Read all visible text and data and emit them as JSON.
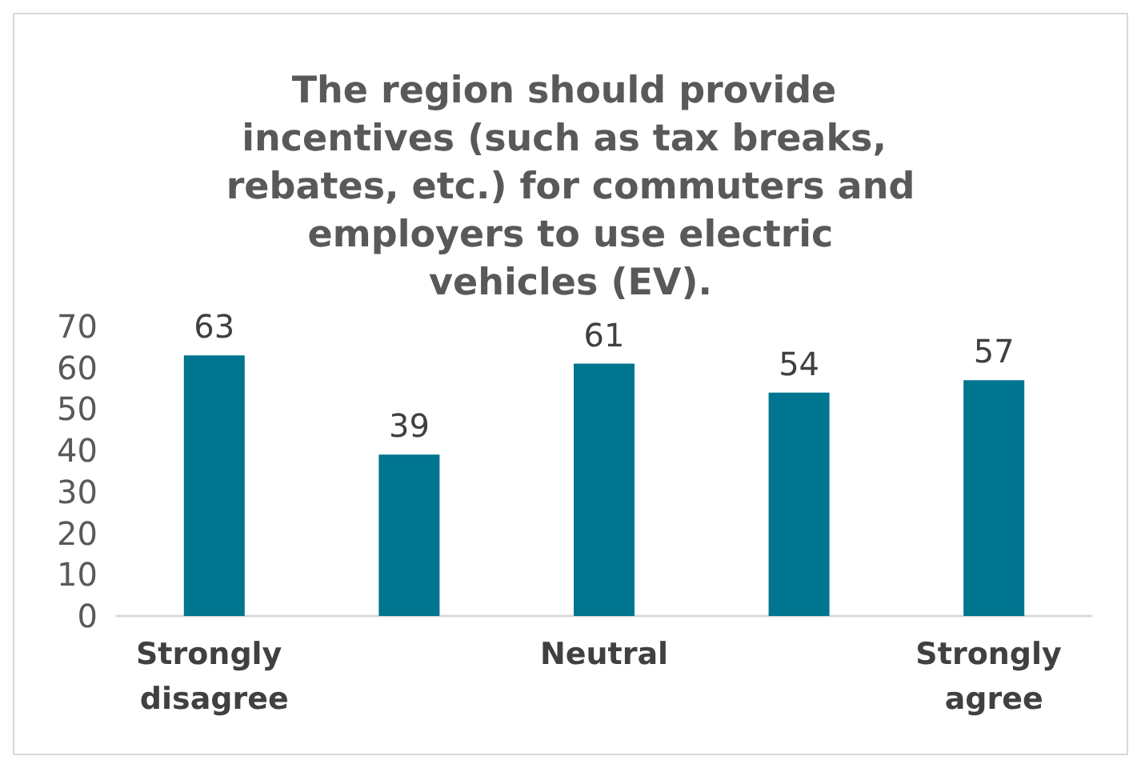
{
  "chart_data": {
    "type": "bar",
    "title": "The region should provide incentives (such as tax breaks, rebates, etc.) for commuters and employers to use electric vehicles (EV).",
    "categories": [
      "Strongly disagree",
      null,
      "Neutral",
      null,
      "Strongly agree"
    ],
    "values": [
      63,
      39,
      61,
      54,
      57
    ],
    "color": "#00758f",
    "ylim": [
      0,
      70
    ],
    "yticks": [
      0,
      10,
      20,
      30,
      40,
      50,
      60,
      70
    ],
    "grid": false,
    "data_labels": true
  }
}
